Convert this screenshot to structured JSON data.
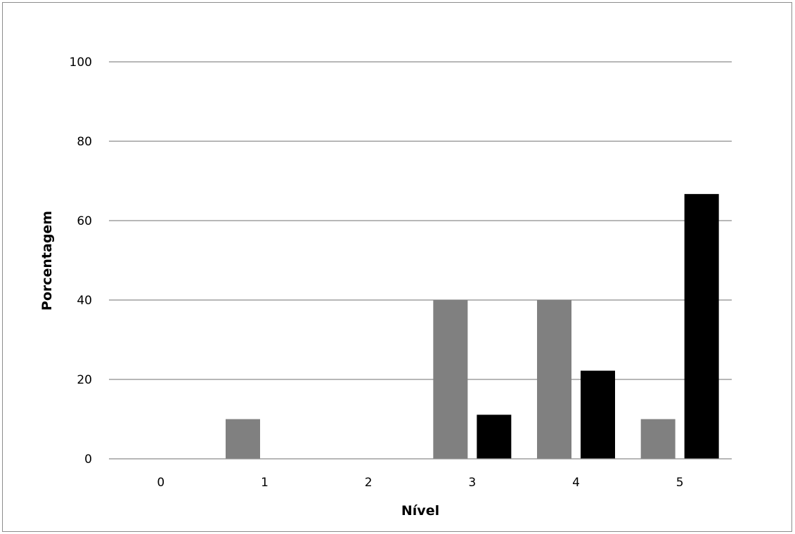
{
  "chart_data": {
    "type": "bar",
    "title": "",
    "xlabel": "Nível",
    "ylabel": "Porcentagem",
    "categories": [
      "0",
      "1",
      "2",
      "3",
      "4",
      "5"
    ],
    "series": [
      {
        "values": [
          0,
          10,
          0,
          40,
          40,
          10
        ],
        "color": "#808080"
      },
      {
        "values": [
          0,
          0,
          0,
          11.1,
          22.2,
          66.7
        ],
        "color": "#000000"
      }
    ],
    "ylim": [
      0,
      100
    ],
    "yticks": [
      "0",
      "20",
      "40",
      "60",
      "80",
      "100"
    ],
    "grid": true,
    "gridline_color": "#8c8c8c",
    "legend": "none"
  }
}
